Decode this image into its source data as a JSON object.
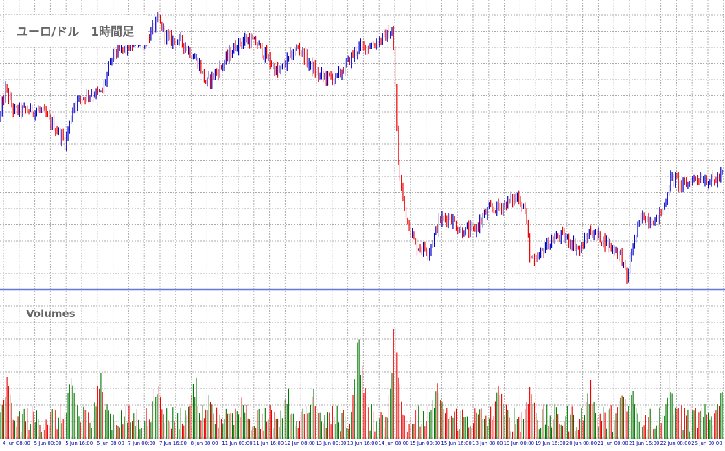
{
  "chart_data": [
    {
      "type": "candlestick",
      "title": "ユーロ/ドル　1時間足",
      "grid": true,
      "series": {
        "ohlc_key_points": [
          [
            0,
            1.172
          ],
          [
            8,
            1.178
          ],
          [
            20,
            1.1735
          ],
          [
            60,
            1.1735
          ],
          [
            80,
            1.17
          ],
          [
            95,
            1.167
          ],
          [
            108,
            1.175
          ],
          [
            130,
            1.177
          ],
          [
            148,
            1.177
          ],
          [
            165,
            1.185
          ],
          [
            180,
            1.186
          ],
          [
            200,
            1.1875
          ],
          [
            215,
            1.188
          ],
          [
            230,
            1.192
          ],
          [
            245,
            1.188
          ],
          [
            265,
            1.1875
          ],
          [
            290,
            1.183
          ],
          [
            300,
            1.179
          ],
          [
            320,
            1.182
          ],
          [
            345,
            1.187
          ],
          [
            360,
            1.188
          ],
          [
            375,
            1.187
          ],
          [
            390,
            1.184
          ],
          [
            405,
            1.181
          ],
          [
            420,
            1.184
          ],
          [
            435,
            1.1865
          ],
          [
            450,
            1.183
          ],
          [
            465,
            1.1805
          ],
          [
            490,
            1.18
          ],
          [
            505,
            1.183
          ],
          [
            520,
            1.186
          ],
          [
            545,
            1.187
          ],
          [
            565,
            1.189
          ],
          [
            572,
            1.1895
          ],
          [
            576,
            1.177
          ],
          [
            580,
            1.162
          ],
          [
            590,
            1.153
          ],
          [
            605,
            1.146
          ],
          [
            625,
            1.145
          ],
          [
            640,
            1.151
          ],
          [
            655,
            1.152
          ],
          [
            670,
            1.149
          ],
          [
            690,
            1.149
          ],
          [
            710,
            1.153
          ],
          [
            730,
            1.154
          ],
          [
            755,
            1.156
          ],
          [
            765,
            1.153
          ],
          [
            772,
            1.144
          ],
          [
            778,
            1.142
          ],
          [
            795,
            1.146
          ],
          [
            815,
            1.148
          ],
          [
            830,
            1.147
          ],
          [
            845,
            1.145
          ],
          [
            860,
            1.149
          ],
          [
            880,
            1.147
          ],
          [
            905,
            1.144
          ],
          [
            913,
            1.139
          ],
          [
            920,
            1.145
          ],
          [
            935,
            1.152
          ],
          [
            955,
            1.151
          ],
          [
            965,
            1.153
          ],
          [
            978,
            1.16
          ],
          [
            995,
            1.158
          ],
          [
            1015,
            1.16
          ],
          [
            1040,
            1.159
          ],
          [
            1056,
            1.161
          ]
        ]
      },
      "ylim": [
        1.137,
        1.196
      ]
    },
    {
      "type": "bar",
      "title": "Volumes",
      "x_labels": [
        "4 Jun 08:00",
        "5 Jun 00:00",
        "5 Jun 16:00",
        "6 Jun 08:00",
        "7 Jun 00:00",
        "7 Jun 16:00",
        "8 Jun 08:00",
        "11 Jun 00:00",
        "11 Jun 16:00",
        "12 Jun 08:00",
        "13 Jun 00:00",
        "13 Jun 16:00",
        "14 Jun 08:00",
        "15 Jun 00:00",
        "15 Jun 16:00",
        "18 Jun 08:00",
        "19 Jun 00:00",
        "19 Jun 16:00",
        "20 Jun 08:00",
        "21 Jun 00:00",
        "21 Jun 16:00",
        "22 Jun 08:00",
        "25 Jun 00:00"
      ],
      "colors": {
        "up_candle": "#0000cc",
        "down_candle": "#ee0000",
        "up_volume": "#007700",
        "down_volume": "#ee0000",
        "grid": "#aaaaaa",
        "separator": "#6677dd",
        "axis_text": "#0000aa",
        "title_text": "#666666"
      }
    }
  ]
}
